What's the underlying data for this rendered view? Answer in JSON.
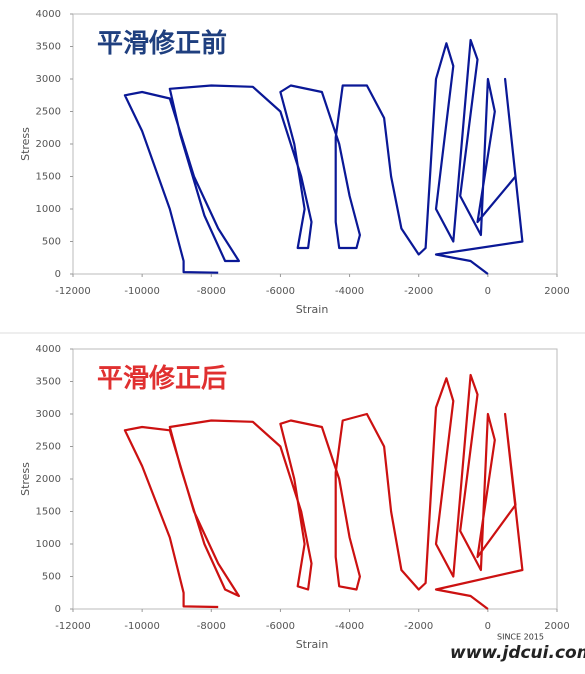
{
  "chart_data": [
    {
      "type": "line",
      "title": "平滑修正前",
      "title_color": "#1f3f7f",
      "xlabel": "Strain",
      "ylabel": "Stress",
      "xlim": [
        -12000,
        2000
      ],
      "xticks": [
        -12000,
        -10000,
        -8000,
        -6000,
        -4000,
        -2000,
        0,
        2000
      ],
      "ylim": [
        0,
        4000
      ],
      "yticks": [
        0,
        500,
        1000,
        1500,
        2000,
        2500,
        3000,
        3500,
        4000
      ],
      "series": [
        {
          "name": "Stress",
          "color": "#0a1896",
          "x": [
            -7800,
            -8800,
            -8800,
            -9200,
            -10000,
            -10500,
            -10000,
            -9200,
            -8500,
            -7800,
            -7200,
            -7600,
            -8200,
            -8900,
            -9200,
            -8000,
            -6800,
            -6000,
            -5400,
            -5100,
            -5200,
            -5500,
            -5300,
            -5600,
            -6000,
            -5700,
            -4800,
            -4300,
            -4000,
            -3700,
            -3800,
            -4300,
            -4400,
            -4400,
            -4200,
            -3500,
            -3000,
            -2800,
            -2500,
            -2000,
            -1800,
            -1500,
            -1200,
            -1000,
            -1500,
            -1000,
            -500,
            -300,
            -800,
            -200,
            0,
            200,
            -300,
            800,
            500,
            1000,
            -1500,
            -500,
            0
          ],
          "values": [
            20,
            30,
            200,
            1000,
            2200,
            2750,
            2800,
            2700,
            1500,
            700,
            200,
            200,
            900,
            2150,
            2850,
            2900,
            2880,
            2500,
            1500,
            800,
            400,
            400,
            1000,
            2000,
            2800,
            2900,
            2800,
            2000,
            1200,
            600,
            400,
            400,
            800,
            2100,
            2900,
            2900,
            2400,
            1500,
            700,
            300,
            400,
            3000,
            3550,
            3200,
            1000,
            500,
            3600,
            3300,
            1200,
            600,
            3000,
            2500,
            800,
            1500,
            3000,
            500,
            300,
            200,
            0
          ]
        }
      ]
    },
    {
      "type": "line",
      "title": "平滑修正后",
      "title_color": "#e03030",
      "xlabel": "Strain",
      "ylabel": "Stress",
      "xlim": [
        -12000,
        2000
      ],
      "xticks": [
        -12000,
        -10000,
        -8000,
        -6000,
        -4000,
        -2000,
        0,
        2000
      ],
      "ylim": [
        0,
        4000
      ],
      "yticks": [
        0,
        500,
        1000,
        1500,
        2000,
        2500,
        3000,
        3500,
        4000
      ],
      "series": [
        {
          "name": "Stress",
          "color": "#cc1111",
          "x": [
            -7800,
            -8800,
            -8800,
            -9200,
            -10000,
            -10500,
            -10000,
            -9200,
            -8500,
            -7800,
            -7200,
            -7600,
            -8200,
            -8900,
            -9200,
            -8000,
            -6800,
            -6000,
            -5400,
            -5100,
            -5200,
            -5500,
            -5300,
            -5600,
            -6000,
            -5700,
            -4800,
            -4300,
            -4000,
            -3700,
            -3800,
            -4300,
            -4400,
            -4400,
            -4200,
            -3500,
            -3000,
            -2800,
            -2500,
            -2000,
            -1800,
            -1500,
            -1200,
            -1000,
            -1500,
            -1000,
            -500,
            -300,
            -800,
            -200,
            0,
            200,
            -300,
            800,
            500,
            1000,
            -1500,
            -500,
            0
          ],
          "values": [
            30,
            40,
            250,
            1100,
            2200,
            2750,
            2800,
            2750,
            1500,
            700,
            200,
            300,
            1000,
            2200,
            2800,
            2900,
            2880,
            2500,
            1500,
            700,
            300,
            350,
            1000,
            2000,
            2850,
            2900,
            2800,
            2000,
            1100,
            500,
            300,
            350,
            800,
            2100,
            2900,
            3000,
            2500,
            1500,
            600,
            300,
            400,
            3100,
            3550,
            3200,
            1000,
            500,
            3600,
            3300,
            1200,
            600,
            3000,
            2600,
            800,
            1600,
            3000,
            600,
            300,
            200,
            0
          ]
        }
      ]
    }
  ],
  "watermark": {
    "since": "SINCE 2015",
    "url": "www.jdcui.com"
  }
}
